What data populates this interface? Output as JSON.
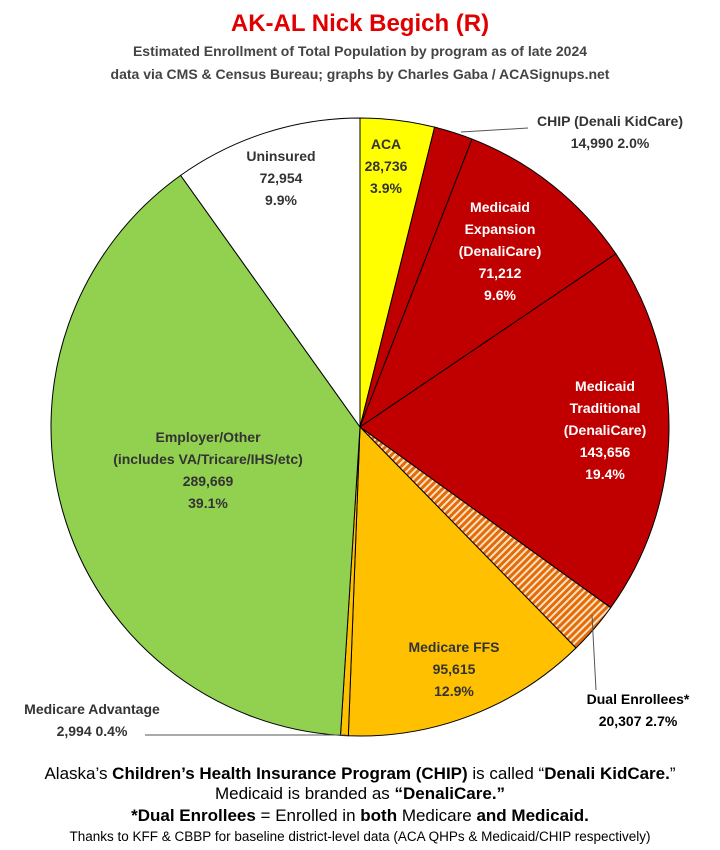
{
  "chart_data": {
    "type": "pie",
    "title": "AK-AL Nick Begich (R)",
    "subtitle": [
      "Estimated Enrollment of Total Population by program as of late 2024",
      "data via CMS & Census Bureau; graphs by Charles Gaba / ACASignups.net"
    ],
    "slices": [
      {
        "key": "aca",
        "label": [
          "ACA"
        ],
        "value": 28736,
        "value_text": "28,736",
        "percent": "3.9%",
        "color": "#ffff00",
        "text_color": "#333333"
      },
      {
        "key": "chip",
        "label": [
          "CHIP (Denali KidCare)"
        ],
        "value": 14990,
        "value_text": "14,990",
        "percent": "2.0%",
        "color": "#c00000",
        "text_color": "#333333",
        "outside": true,
        "value_line": "14,990 2.0%"
      },
      {
        "key": "medicaid_expansion",
        "label": [
          "Medicaid",
          "Expansion",
          "(DenaliCare)"
        ],
        "value": 71212,
        "value_text": "71,212",
        "percent": "9.6%",
        "color": "#c00000",
        "text_color": "#ffffff"
      },
      {
        "key": "medicaid_traditional",
        "label": [
          "Medicaid",
          "Traditional",
          "(DenaliCare)"
        ],
        "value": 143656,
        "value_text": "143,656",
        "percent": "19.4%",
        "color": "#c00000",
        "text_color": "#ffffff"
      },
      {
        "key": "dual",
        "label": [
          "Dual Enrollees*"
        ],
        "value": 20307,
        "value_text": "20,307",
        "percent": "2.7%",
        "color": "#e36c09",
        "pattern": "stripes",
        "text_color": "#000000",
        "outside": true,
        "value_line": "20,307 2.7%"
      },
      {
        "key": "medicare_ffs",
        "label": [
          "Medicare FFS"
        ],
        "value": 95615,
        "value_text": "95,615",
        "percent": "12.9%",
        "color": "#ffc000",
        "text_color": "#333333"
      },
      {
        "key": "medicare_advantage",
        "label": [
          "Medicare Advantage"
        ],
        "value": 2994,
        "value_text": "2,994",
        "percent": "0.4%",
        "color": "#ffc000",
        "text_color": "#333333",
        "outside": true,
        "value_line": "2,994 0.4%"
      },
      {
        "key": "employer",
        "label": [
          "Employer/Other",
          "(includes VA/Tricare/IHS/etc)"
        ],
        "value": 289669,
        "value_text": "289,669",
        "percent": "39.1%",
        "color": "#92d050",
        "text_color": "#333333"
      },
      {
        "key": "uninsured",
        "label": [
          "Uninsured"
        ],
        "value": 72954,
        "value_text": "72,954",
        "percent": "9.9%",
        "color": "#ffffff",
        "text_color": "#333333"
      }
    ]
  },
  "footer": {
    "l1_a": "Alaska’s ",
    "l1_b": "Children’s Health Insurance Program (CHIP)",
    "l1_c": " is called “",
    "l1_d": "Denali KidCare.",
    "l1_e": "”",
    "l2_a": "Medicaid is branded as ",
    "l2_b": "“DenaliCare.”",
    "l3_a": "*Dual Enrollees",
    "l3_b": " = Enrolled in ",
    "l3_c": "both",
    "l3_d": " Medicare ",
    "l3_e": "and Medicaid.",
    "l4": "Thanks to KFF & CBBP for baseline district-level data (ACA QHPs & Medicaid/CHIP respectively)"
  }
}
